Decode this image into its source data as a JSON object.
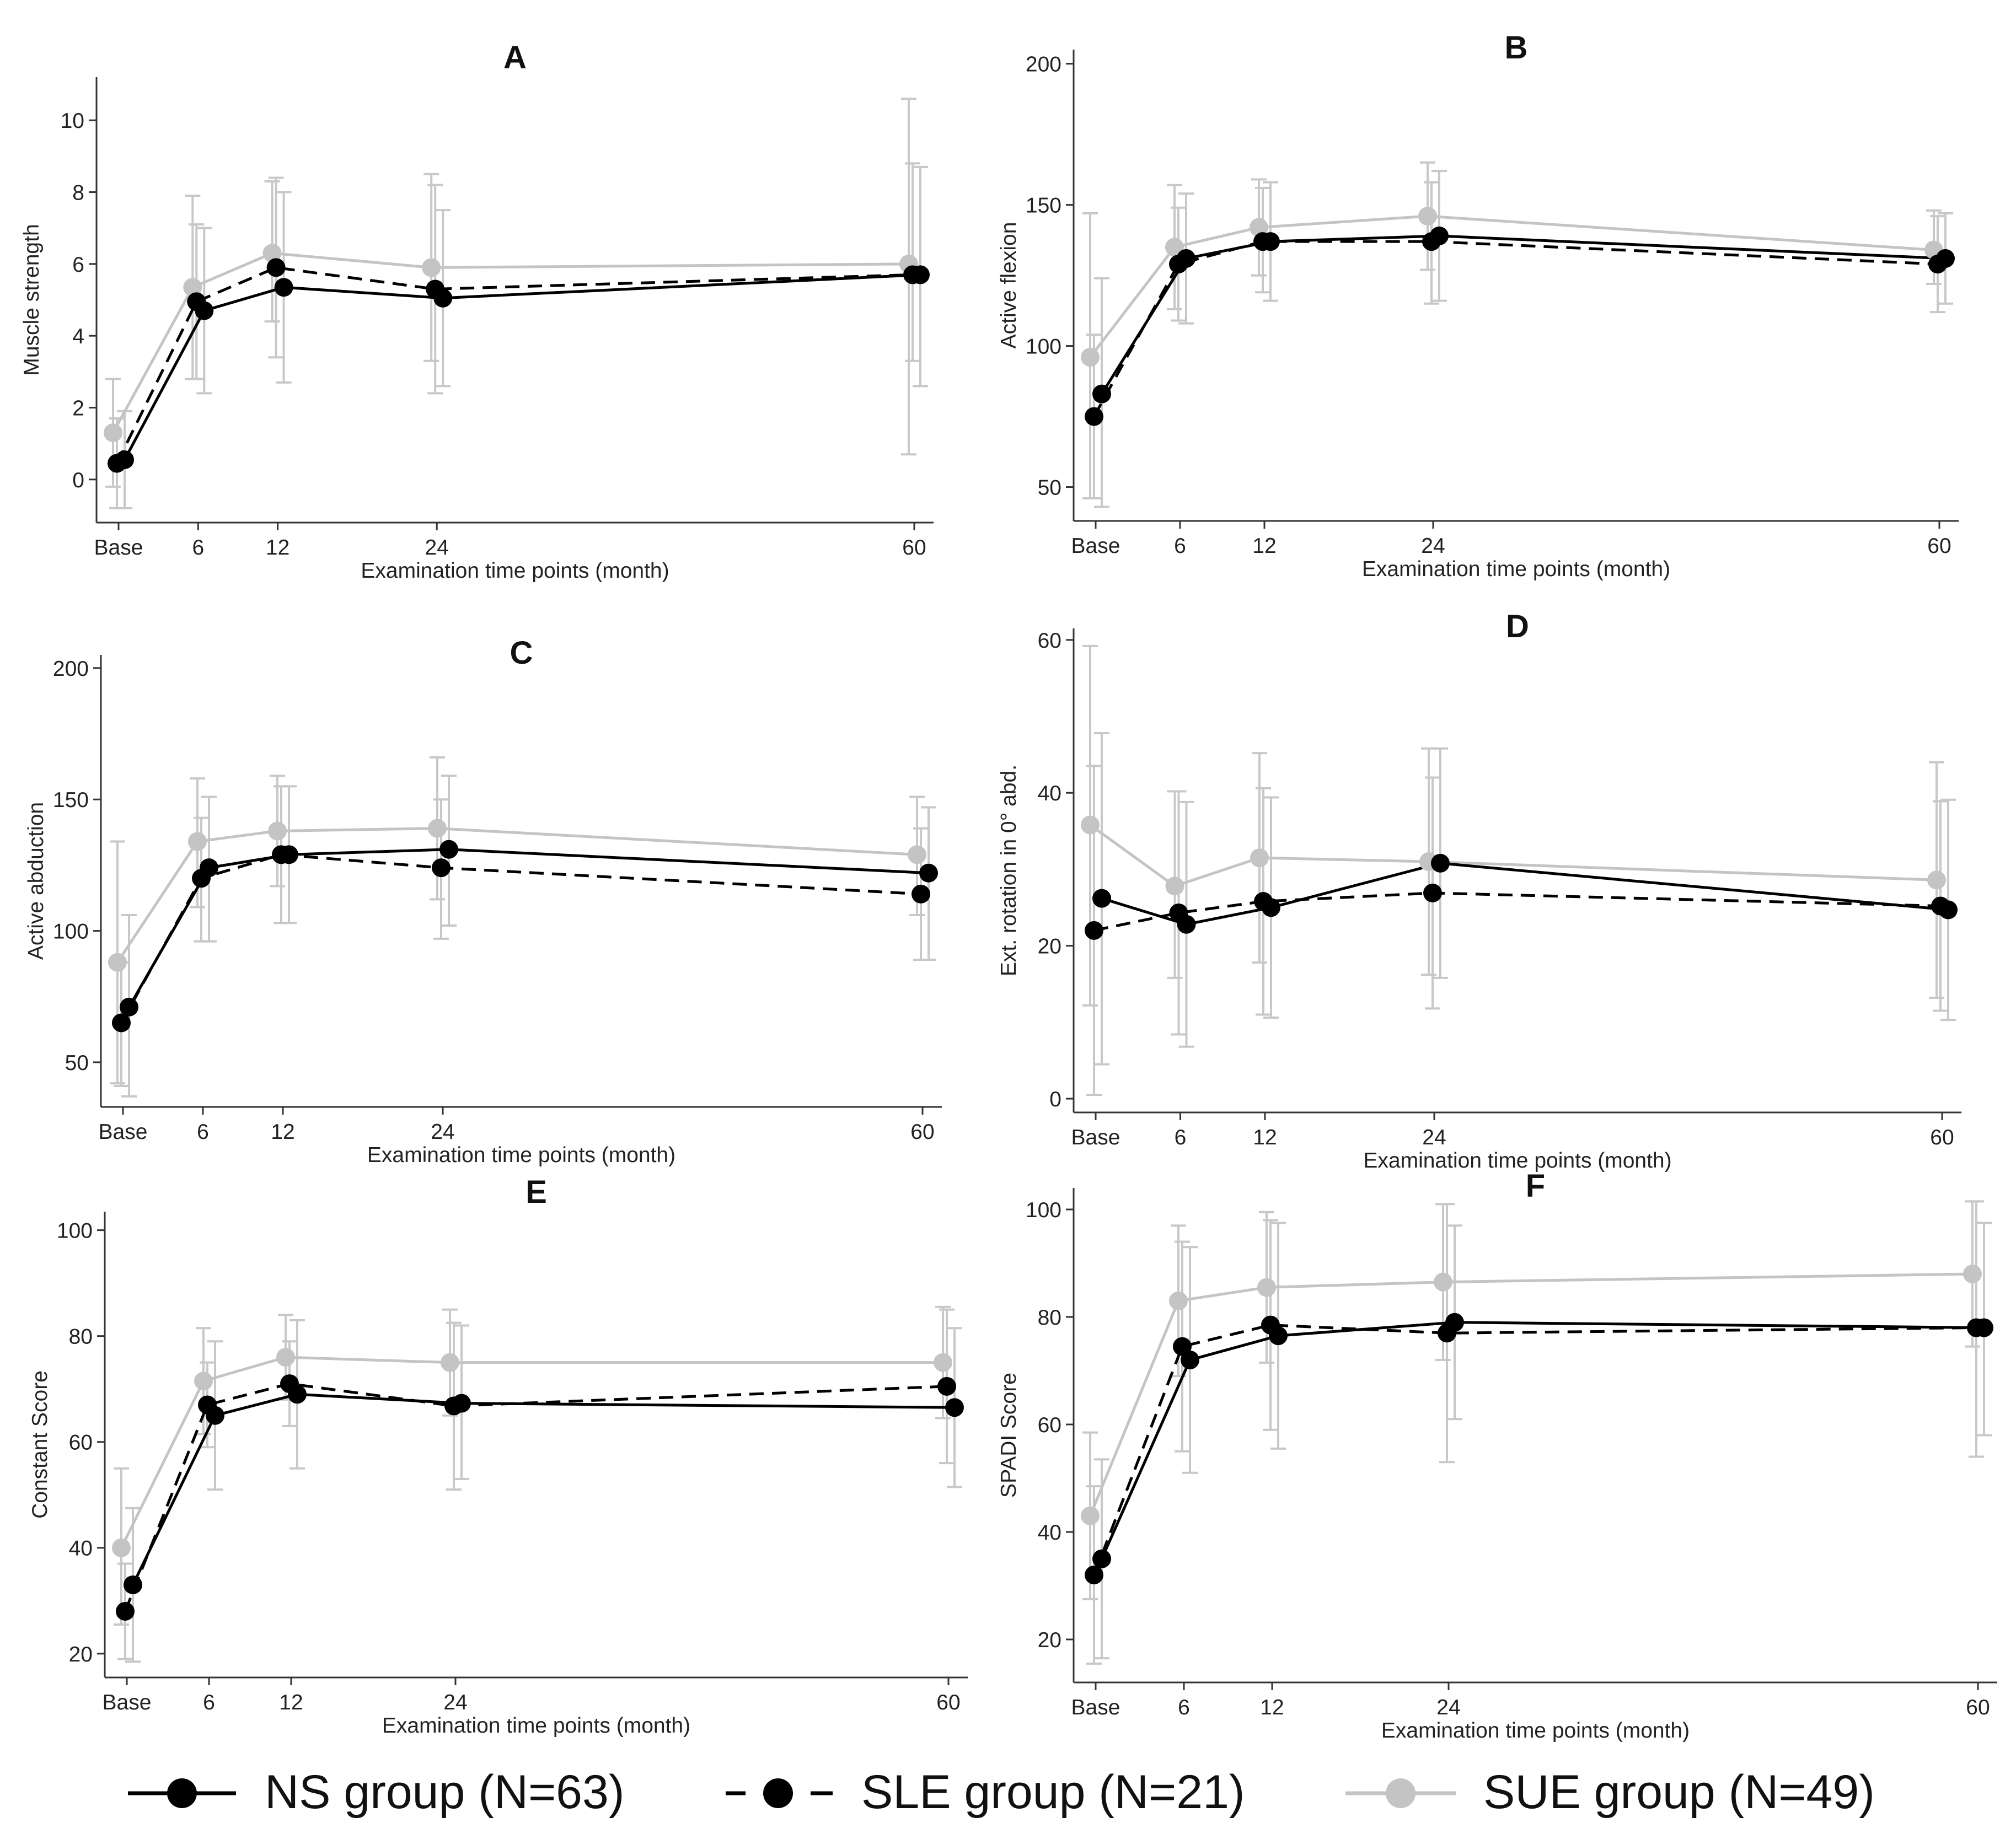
{
  "figure": {
    "legend": [
      {
        "name": "NS group (N=63)",
        "style": "solid",
        "color": "#000000"
      },
      {
        "name": "SLE group (N=21)",
        "style": "dashed",
        "color": "#000000"
      },
      {
        "name": "SUE group (N=49)",
        "style": "solid",
        "color": "#c4c4c4"
      }
    ]
  },
  "chart_data": [
    {
      "type": "line",
      "title": "A",
      "ylabel": "Muscle strength",
      "xlabel": "Examination time points (month)",
      "x": [
        0,
        6,
        12,
        24,
        60
      ],
      "xticks": [
        "Base",
        "6",
        "12",
        "24",
        "60"
      ],
      "ylim": [
        -1.2,
        11.2
      ],
      "yticks": [
        0,
        2,
        4,
        6,
        8,
        10
      ],
      "series": [
        {
          "name": "NS group (N=63)",
          "values": [
            0.55,
            4.7,
            5.35,
            5.05,
            5.7
          ],
          "ci": [
            [
              -0.8,
              1.9
            ],
            [
              2.4,
              7.0
            ],
            [
              2.7,
              8.0
            ],
            [
              2.6,
              7.5
            ],
            [
              2.6,
              8.7
            ]
          ]
        },
        {
          "name": "SLE group (N=21)",
          "values": [
            0.45,
            4.95,
            5.9,
            5.3,
            5.7
          ],
          "ci": [
            [
              -0.8,
              1.7
            ],
            [
              2.8,
              7.1
            ],
            [
              3.4,
              8.4
            ],
            [
              2.4,
              8.2
            ],
            [
              3.3,
              8.8
            ]
          ]
        },
        {
          "name": "SUE group (N=49)",
          "values": [
            1.3,
            5.35,
            6.3,
            5.9,
            6.0
          ],
          "ci": [
            [
              -0.2,
              2.8
            ],
            [
              2.8,
              7.9
            ],
            [
              4.4,
              8.3
            ],
            [
              3.3,
              8.5
            ],
            [
              0.7,
              10.6
            ]
          ]
        }
      ]
    },
    {
      "type": "line",
      "title": "B",
      "ylabel": "Active flexion",
      "xlabel": "Examination time points (month)",
      "x": [
        0,
        6,
        12,
        24,
        60
      ],
      "xticks": [
        "Base",
        "6",
        "12",
        "24",
        "60"
      ],
      "ylim": [
        38,
        205
      ],
      "yticks": [
        50,
        100,
        150,
        200
      ],
      "series": [
        {
          "name": "NS group (N=63)",
          "values": [
            83,
            131,
            137,
            139,
            131
          ],
          "ci": [
            [
              43,
              124
            ],
            [
              108,
              154
            ],
            [
              116,
              158
            ],
            [
              116,
              162
            ],
            [
              115,
              147
            ]
          ]
        },
        {
          "name": "SLE group (N=21)",
          "values": [
            75,
            129,
            137,
            137,
            129
          ],
          "ci": [
            [
              46,
              104
            ],
            [
              109,
              149
            ],
            [
              119,
              156
            ],
            [
              115,
              158
            ],
            [
              112,
              146
            ]
          ]
        },
        {
          "name": "SUE group (N=49)",
          "values": [
            96,
            135,
            142,
            146,
            134
          ],
          "ci": [
            [
              46,
              147
            ],
            [
              113,
              157
            ],
            [
              125,
              159
            ],
            [
              127,
              165
            ],
            [
              122,
              148
            ]
          ]
        }
      ]
    },
    {
      "type": "line",
      "title": "C",
      "ylabel": "Active abduction",
      "xlabel": "Examination time points (month)",
      "x": [
        0,
        6,
        12,
        24,
        60
      ],
      "xticks": [
        "Base",
        "6",
        "12",
        "24",
        "60"
      ],
      "ylim": [
        33,
        205
      ],
      "yticks": [
        50,
        100,
        150,
        200
      ],
      "series": [
        {
          "name": "NS group (N=63)",
          "values": [
            71,
            124,
            129,
            131,
            122
          ],
          "ci": [
            [
              37,
              106
            ],
            [
              96,
              151
            ],
            [
              103,
              155
            ],
            [
              102,
              159
            ],
            [
              89,
              147
            ]
          ]
        },
        {
          "name": "SLE group (N=21)",
          "values": [
            65,
            120,
            129,
            124,
            114
          ],
          "ci": [
            [
              41,
              88
            ],
            [
              96,
              143
            ],
            [
              103,
              155
            ],
            [
              97,
              150
            ],
            [
              89,
              139
            ]
          ]
        },
        {
          "name": "SUE group (N=49)",
          "values": [
            88,
            134,
            138,
            139,
            129
          ],
          "ci": [
            [
              42,
              134
            ],
            [
              109,
              158
            ],
            [
              117,
              159
            ],
            [
              112,
              166
            ],
            [
              106,
              151
            ]
          ]
        }
      ]
    },
    {
      "type": "line",
      "title": "D",
      "ylabel": "Ext. rotation in 0° abd.",
      "xlabel": "Examination time points (month)",
      "x": [
        0,
        6,
        12,
        24,
        60
      ],
      "xticks": [
        "Base",
        "6",
        "12",
        "24",
        "60"
      ],
      "ylim": [
        -1.8,
        61.5
      ],
      "yticks": [
        0,
        20,
        40,
        60
      ],
      "series": [
        {
          "name": "NS group (N=63)",
          "values": [
            26.2,
            22.8,
            25.0,
            30.8,
            24.7
          ],
          "ci": [
            [
              4.5,
              47.8
            ],
            [
              6.8,
              38.8
            ],
            [
              10.6,
              39.4
            ],
            [
              15.8,
              45.8
            ],
            [
              10.3,
              39.1
            ]
          ]
        },
        {
          "name": "SLE group (N=21)",
          "values": [
            22.0,
            24.3,
            25.8,
            26.9,
            25.2
          ],
          "ci": [
            [
              0.5,
              43.5
            ],
            [
              8.4,
              40.2
            ],
            [
              11.0,
              40.6
            ],
            [
              11.8,
              42.0
            ],
            [
              11.5,
              38.9
            ]
          ]
        },
        {
          "name": "SUE group (N=49)",
          "values": [
            35.8,
            27.8,
            31.5,
            31.0,
            28.6
          ],
          "ci": [
            [
              12.2,
              59.2
            ],
            [
              15.8,
              40.2
            ],
            [
              17.8,
              45.2
            ],
            [
              16.2,
              45.8
            ],
            [
              13.2,
              44.0
            ]
          ]
        }
      ]
    },
    {
      "type": "line",
      "title": "E",
      "ylabel": "Constant Score",
      "xlabel": "Examination time points (month)",
      "x": [
        0,
        6,
        12,
        24,
        60
      ],
      "xticks": [
        "Base",
        "6",
        "12",
        "24",
        "60"
      ],
      "ylim": [
        15.5,
        103.5
      ],
      "yticks": [
        20,
        40,
        60,
        80,
        100
      ],
      "series": [
        {
          "name": "NS group (N=63)",
          "values": [
            33,
            65,
            69,
            67.3,
            66.5
          ],
          "ci": [
            [
              18.5,
              47.5
            ],
            [
              51,
              79
            ],
            [
              55,
              83
            ],
            [
              53,
              82
            ],
            [
              51.5,
              81.5
            ]
          ]
        },
        {
          "name": "SLE group (N=21)",
          "values": [
            28,
            67,
            71,
            66.8,
            70.5
          ],
          "ci": [
            [
              19,
              37
            ],
            [
              59,
              75
            ],
            [
              63,
              79
            ],
            [
              51,
              82.5
            ],
            [
              56,
              85
            ]
          ]
        },
        {
          "name": "SUE group (N=49)",
          "values": [
            40,
            71.5,
            76,
            75,
            75
          ],
          "ci": [
            [
              25.5,
              55
            ],
            [
              61.5,
              81.5
            ],
            [
              68,
              84
            ],
            [
              65,
              85
            ],
            [
              64.5,
              85.5
            ]
          ]
        }
      ]
    },
    {
      "type": "line",
      "title": "F",
      "ylabel": "SPADI Score",
      "xlabel": "Examination time points (month)",
      "x": [
        0,
        6,
        12,
        24,
        60
      ],
      "xticks": [
        "Base",
        "6",
        "12",
        "24",
        "60"
      ],
      "ylim": [
        12,
        104
      ],
      "yticks": [
        20,
        40,
        60,
        80,
        100
      ],
      "series": [
        {
          "name": "NS group (N=63)",
          "values": [
            35,
            72,
            76.5,
            79,
            78
          ],
          "ci": [
            [
              16.5,
              53.5
            ],
            [
              51,
              93
            ],
            [
              55.5,
              97.5
            ],
            [
              61,
              97
            ],
            [
              58,
              97.5
            ]
          ]
        },
        {
          "name": "SLE group (N=21)",
          "values": [
            32,
            74.5,
            78.5,
            77,
            78
          ],
          "ci": [
            [
              15.5,
              48.5
            ],
            [
              55,
              94
            ],
            [
              59,
              98
            ],
            [
              53,
              101
            ],
            [
              54,
              101.5
            ]
          ]
        },
        {
          "name": "SUE group (N=49)",
          "values": [
            43,
            83,
            85.5,
            86.5,
            88
          ],
          "ci": [
            [
              27.5,
              58.5
            ],
            [
              69,
              97
            ],
            [
              71.5,
              99.5
            ],
            [
              72,
              101
            ],
            [
              74.5,
              101.5
            ]
          ]
        }
      ]
    }
  ]
}
